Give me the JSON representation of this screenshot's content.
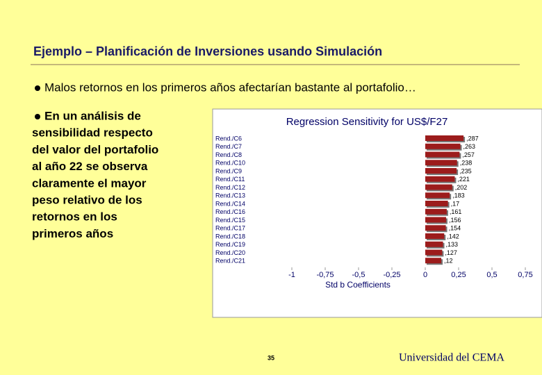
{
  "title": "Ejemplo – Planificación de Inversiones usando Simulación",
  "bullets": [
    [
      "Malos retornos en los primeros años afectarían bastante al portafolio…"
    ],
    [
      "En un análisis de",
      "sensibilidad respecto",
      "del valor del portafolio",
      "al año 22 se observa",
      "claramente el mayor",
      "peso relativo de los",
      "retornos en los",
      "primeros años"
    ]
  ],
  "chart_data": {
    "type": "bar",
    "orientation": "horizontal",
    "title": "Regression Sensitivity for US$/F27",
    "x_label": "Std b Coefficients",
    "categories": [
      "Rend./C6",
      "Rend./C7",
      "Rend./C8",
      "Rend./C10",
      "Rend./C9",
      "Rend./C11",
      "Rend./C12",
      "Rend./C13",
      "Rend./C14",
      "Rend./C16",
      "Rend./C15",
      "Rend./C17",
      "Rend./C18",
      "Rend./C19",
      "Rend./C20",
      "Rend./C21"
    ],
    "values": [
      0.287,
      0.263,
      0.257,
      0.238,
      0.235,
      0.221,
      0.202,
      0.183,
      0.17,
      0.161,
      0.156,
      0.154,
      0.142,
      0.133,
      0.127,
      0.12
    ],
    "value_labels": [
      ",287",
      ",263",
      ",257",
      ",238",
      ",235",
      ",221",
      ",202",
      ",183",
      ",17",
      ",161",
      ",156",
      ",154",
      ",142",
      ",133",
      ",127",
      ",12"
    ],
    "color": "#9c1c1c",
    "xlim": [
      -1,
      0.75
    ],
    "xticks": [
      -1,
      {
        "value": -0.75,
        "label": "-0,75"
      },
      {
        "value": -0.5,
        "label": "-0,5"
      },
      {
        "value": -0.25,
        "label": "-0,25"
      },
      0,
      {
        "value": 0.25,
        "label": "0,25"
      },
      {
        "value": 0.5,
        "label": "0,5"
      },
      {
        "value": 0.75,
        "label": "0,75"
      }
    ]
  },
  "footer": {
    "page": "35",
    "org": "Universidad del CEMA"
  }
}
